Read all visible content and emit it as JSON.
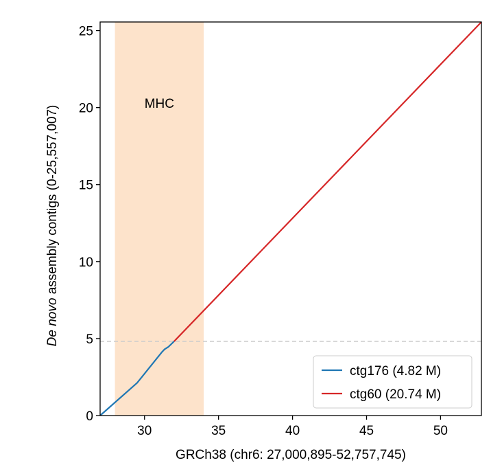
{
  "chart_data": {
    "type": "line",
    "xlabel": "GRCh38 (chr6: 27,000,895-52,757,745)",
    "ylabel_italic": "De novo",
    "ylabel_rest": " assembly contigs (0-25,557,007)",
    "xlim": [
      27.0,
      52.76
    ],
    "ylim": [
      0,
      25.56
    ],
    "xticks": [
      30,
      35,
      40,
      45,
      50
    ],
    "xtick_labels": [
      "30",
      "35",
      "40",
      "45",
      "50"
    ],
    "yticks": [
      0,
      5,
      10,
      15,
      20,
      25
    ],
    "ytick_labels": [
      "0",
      "5",
      "10",
      "15",
      "20",
      "25"
    ],
    "grid": false,
    "legend_placement": "lower-right",
    "shaded_regions": [
      {
        "label": "MHC",
        "x": [
          28.0,
          34.0
        ],
        "color": "#fde3cb"
      }
    ],
    "hlines": [
      {
        "y": 4.82,
        "style": "dashed",
        "color": "#cccccc"
      }
    ],
    "series": [
      {
        "name": "ctg176 (4.82 M)",
        "color": "#1f77b4",
        "x": [
          27.0,
          29.5,
          31.2,
          31.35,
          31.6,
          32.0
        ],
        "y": [
          0.0,
          2.12,
          4.15,
          4.3,
          4.45,
          4.82
        ]
      },
      {
        "name": "ctg60 (20.74 M)",
        "color": "#d62728",
        "x": [
          32.0,
          52.76
        ],
        "y": [
          4.82,
          25.56
        ]
      }
    ]
  }
}
